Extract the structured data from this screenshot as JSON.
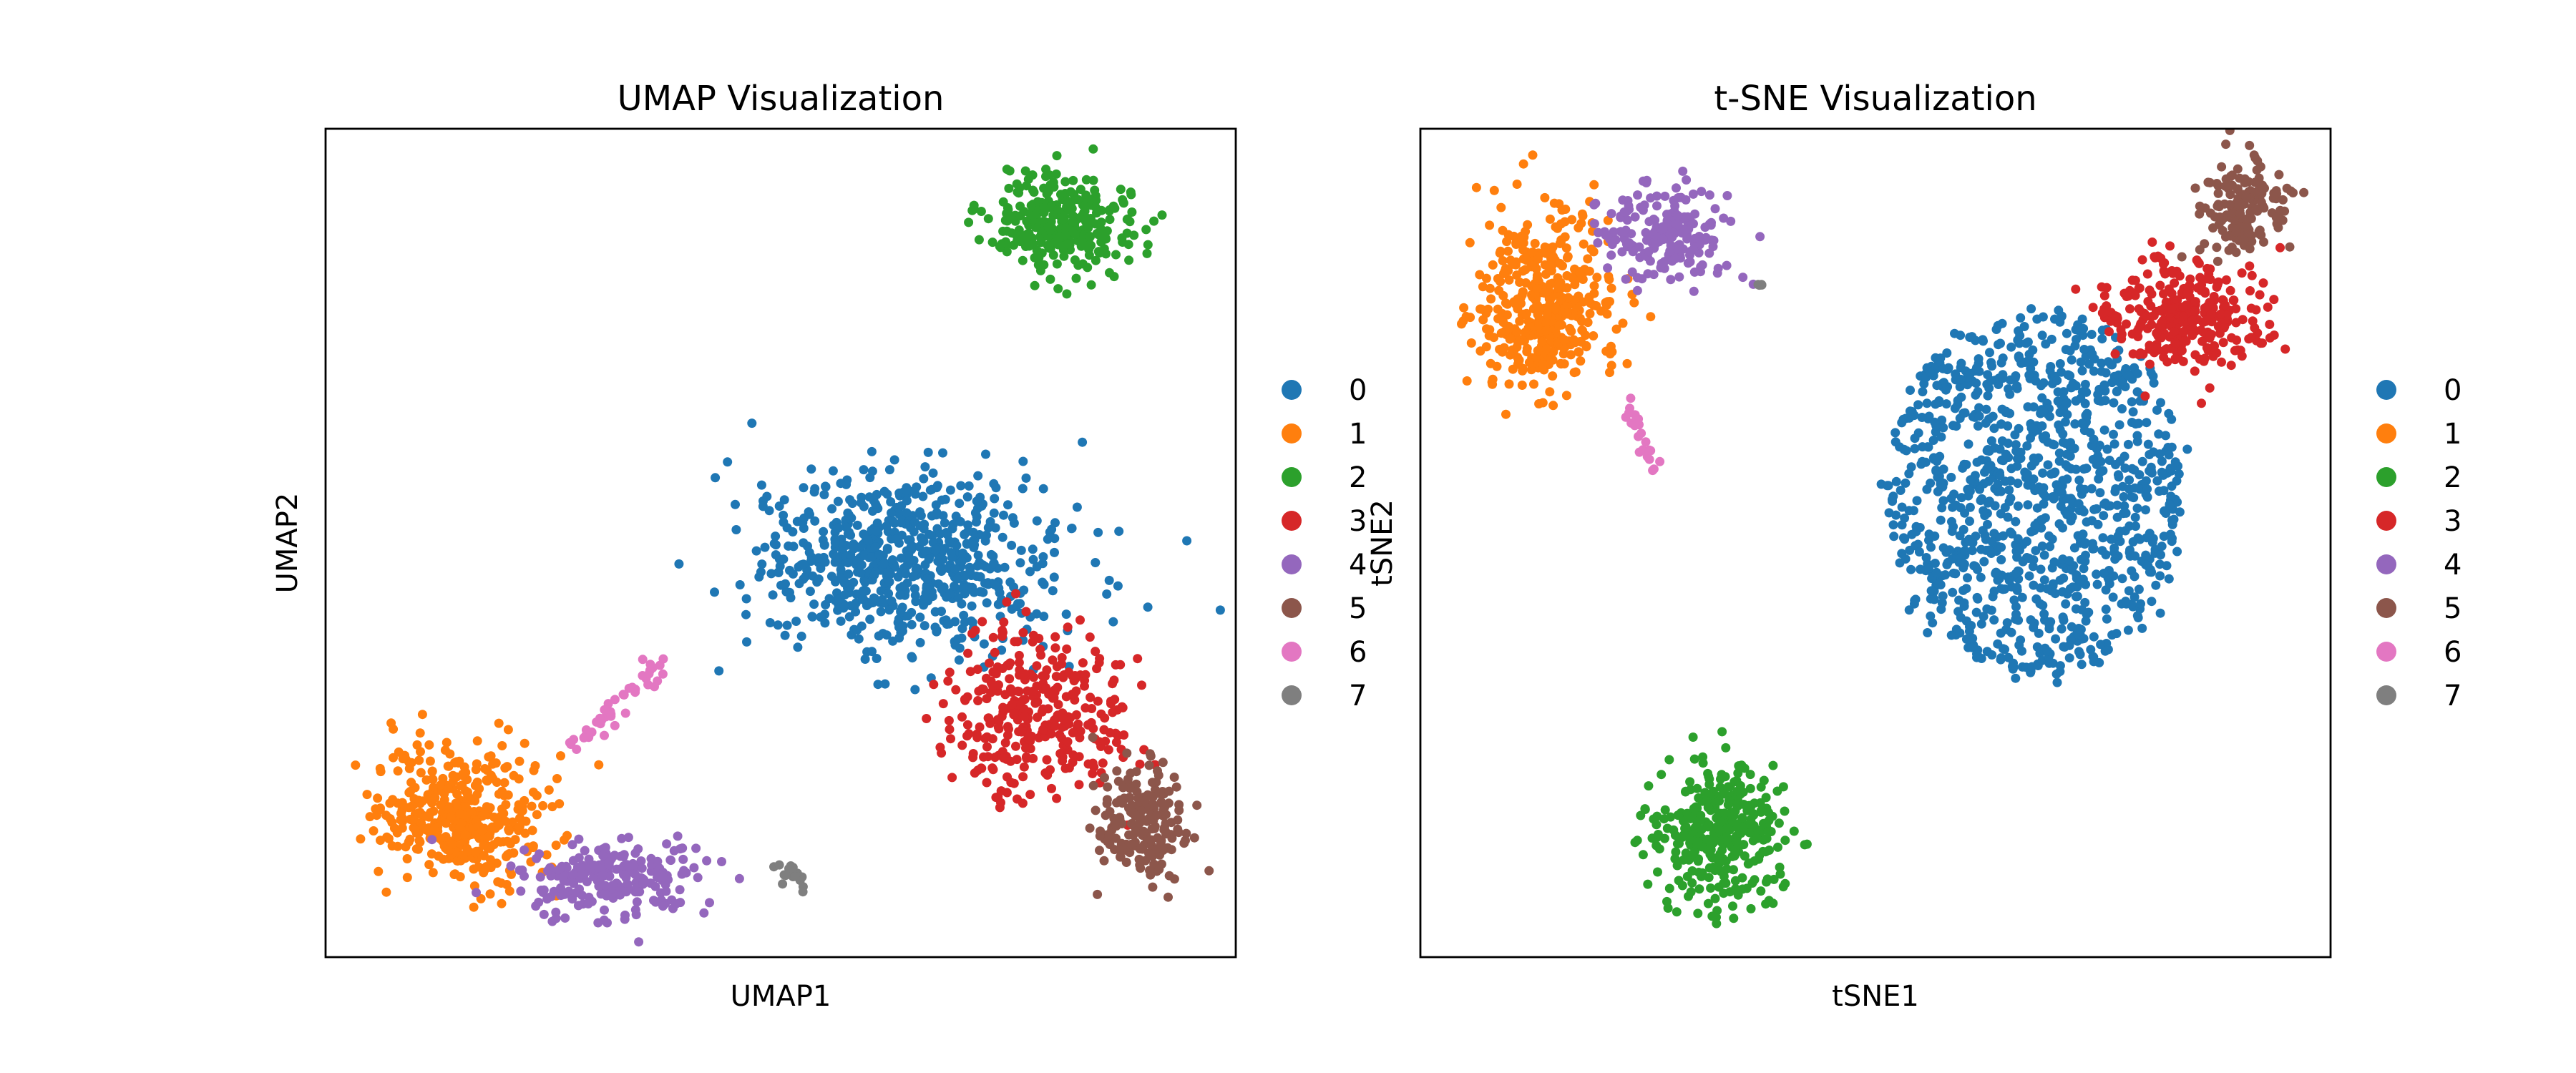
{
  "figure": {
    "background": "#ffffff"
  },
  "chart_data": [
    {
      "type": "scatter",
      "title": "UMAP Visualization",
      "xlabel": "UMAP1",
      "ylabel": "UMAP2",
      "xticks": "none",
      "yticks": "none",
      "grid": false,
      "legend_position": "right-outside",
      "xlim": [
        0,
        100
      ],
      "ylim": [
        0,
        100
      ],
      "series": [
        {
          "name": "0",
          "color": "#1f77b4",
          "count": 700,
          "shape": "gaussian",
          "cx": 63.5,
          "cy": 47.5,
          "sx": 8.5,
          "sy": 5.5
        },
        {
          "name": "1",
          "color": "#ff7f0e",
          "count": 420,
          "shape": "gaussian",
          "cx": 15.0,
          "cy": 17.0,
          "sx": 4.8,
          "sy": 4.2
        },
        {
          "name": "2",
          "color": "#2ca02c",
          "count": 300,
          "shape": "gaussian",
          "cx": 81.0,
          "cy": 88.5,
          "sx": 4.0,
          "sy": 3.0
        },
        {
          "name": "3",
          "color": "#d62728",
          "count": 320,
          "shape": "gaussian",
          "cx": 78.0,
          "cy": 29.5,
          "sx": 4.8,
          "sy": 5.0
        },
        {
          "name": "4",
          "color": "#9467bd",
          "count": 220,
          "shape": "gaussian",
          "cx": 31.5,
          "cy": 9.5,
          "sx": 5.5,
          "sy": 2.3
        },
        {
          "name": "5",
          "color": "#8c564b",
          "count": 190,
          "shape": "gaussian",
          "cx": 89.5,
          "cy": 16.5,
          "sx": 2.7,
          "sy": 3.5
        },
        {
          "name": "6",
          "color": "#e377c2",
          "count": 45,
          "shape": "line",
          "x0": 27.0,
          "y0": 25.5,
          "x1": 36.5,
          "y1": 35.0,
          "jitter": 0.7
        },
        {
          "name": "7",
          "color": "#7f7f7f",
          "count": 18,
          "shape": "gaussian",
          "cx": 51.5,
          "cy": 10.0,
          "sx": 0.9,
          "sy": 0.7
        }
      ]
    },
    {
      "type": "scatter",
      "title": "t-SNE Visualization",
      "xlabel": "tSNE1",
      "ylabel": "tSNE2",
      "xticks": "none",
      "yticks": "none",
      "grid": false,
      "legend_position": "right-outside",
      "xlim": [
        0,
        100
      ],
      "ylim": [
        0,
        100
      ],
      "series": [
        {
          "name": "0",
          "color": "#1f77b4",
          "count": 1050,
          "shape": "disc",
          "cx": 67.5,
          "cy": 56.0,
          "rx": 16.5,
          "ry": 22.0
        },
        {
          "name": "1",
          "color": "#ff7f0e",
          "count": 420,
          "shape": "gaussian",
          "cx": 13.5,
          "cy": 79.0,
          "sx": 4.0,
          "sy": 5.5
        },
        {
          "name": "2",
          "color": "#2ca02c",
          "count": 330,
          "shape": "gaussian",
          "cx": 33.0,
          "cy": 14.5,
          "sx": 3.4,
          "sy": 4.2
        },
        {
          "name": "3",
          "color": "#d62728",
          "count": 300,
          "shape": "gaussian",
          "cx": 84.0,
          "cy": 77.5,
          "sx": 4.5,
          "sy": 3.5
        },
        {
          "name": "4",
          "color": "#9467bd",
          "count": 190,
          "shape": "gaussian",
          "cx": 27.0,
          "cy": 87.0,
          "sx": 4.0,
          "sy": 2.8
        },
        {
          "name": "5",
          "color": "#8c564b",
          "count": 150,
          "shape": "gaussian",
          "cx": 90.5,
          "cy": 90.0,
          "sx": 2.4,
          "sy": 3.0
        },
        {
          "name": "6",
          "color": "#e377c2",
          "count": 22,
          "shape": "line",
          "x0": 22.5,
          "y0": 68.0,
          "x1": 26.0,
          "y1": 59.0,
          "jitter": 0.5
        },
        {
          "name": "7",
          "color": "#7f7f7f",
          "count": 5,
          "shape": "line",
          "x0": 37.0,
          "y0": 81.5,
          "x1": 37.5,
          "y1": 81.0,
          "jitter": 0.1
        }
      ]
    }
  ]
}
